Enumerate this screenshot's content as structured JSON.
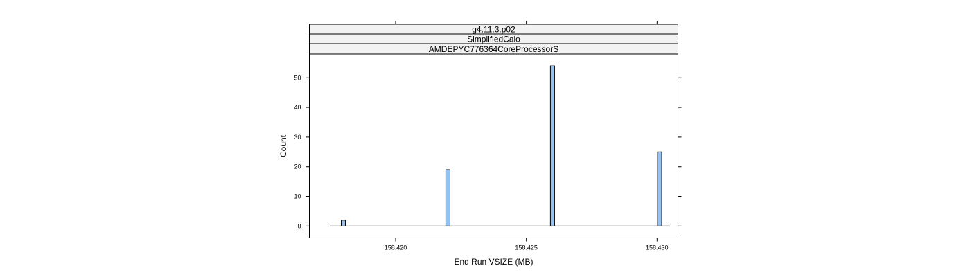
{
  "chart_data": {
    "type": "bar",
    "strips": [
      "g4.11.3.p02",
      "SimplifiedCalo",
      "AMDEPYC776364CoreProcessorS"
    ],
    "xlabel": "End Run VSIZE (MB)",
    "ylabel": "Count",
    "xlim": [
      158.4167,
      158.4308
    ],
    "ylim": [
      -4,
      58
    ],
    "x_ticks": [
      158.42,
      158.425,
      158.43
    ],
    "x_tick_labels": [
      "158.420",
      "158.425",
      "158.430"
    ],
    "y_ticks": [
      0,
      10,
      20,
      30,
      40,
      50
    ],
    "y_tick_labels": [
      "0",
      "10",
      "20",
      "30",
      "40",
      "50"
    ],
    "x_range": [
      158.4175,
      158.4305
    ],
    "bin_width": 0.00016,
    "bars": [
      {
        "x": 158.418,
        "count": 2
      },
      {
        "x": 158.422,
        "count": 19
      },
      {
        "x": 158.426,
        "count": 54
      },
      {
        "x": 158.4301,
        "count": 25
      }
    ],
    "colors": {
      "bar": "#94c3f2",
      "strip": "#f2f2f2"
    }
  }
}
